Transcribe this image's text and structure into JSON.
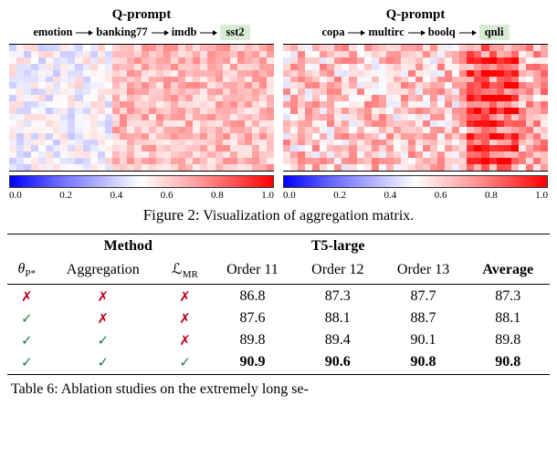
{
  "figure": {
    "panel_title": "Q-prompt",
    "left_labels": [
      "emotion",
      "banking77",
      "imdb",
      "sst2"
    ],
    "right_labels": [
      "copa",
      "multirc",
      "boolq",
      "qnli"
    ],
    "colorbar_ticks": [
      "0.0",
      "0.2",
      "0.4",
      "0.6",
      "0.8",
      "1.0"
    ],
    "colormap_stops": "#0000ff 0%, #6868ff 18%, #ffffff 50%, #ff8a8a 75%, #ff0000 100%",
    "heatmap": {
      "rows": 20,
      "left_cols": 36,
      "right_cols": 36,
      "left_base": 0.55,
      "left_noise": 0.1,
      "left_blocks": [
        {
          "c0": 0,
          "c1": 14,
          "shift": -0.06
        },
        {
          "c0": 14,
          "c1": 36,
          "shift": 0.08
        }
      ],
      "right_base": 0.6,
      "right_noise": 0.16,
      "right_blocks": [
        {
          "c0": 25,
          "c1": 32,
          "shift": 0.14
        },
        {
          "c0": 25,
          "c1": 32,
          "rows": [
            2,
            4,
            6,
            8,
            10,
            12,
            14,
            16,
            18
          ],
          "shift": 0.22
        },
        {
          "c0": 32,
          "c1": 36,
          "shift": 0.06
        }
      ]
    },
    "caption_num": "Figure 2:",
    "caption_text": " Visualization of aggregation matrix."
  },
  "table": {
    "group_left": "Method",
    "group_right": "T5-large",
    "col_theta": "θ",
    "col_theta_sub": "P*",
    "col_agg": "Aggregation",
    "col_lmr": "ℒ",
    "col_lmr_sub": "MR",
    "col_o11": "Order 11",
    "col_o12": "Order 12",
    "col_o13": "Order 13",
    "col_avg": "Average",
    "rows": [
      {
        "theta": "✗",
        "agg": "✗",
        "lmr": "✗",
        "o11": "86.8",
        "o12": "87.3",
        "o13": "87.7",
        "avg": "87.3",
        "bold": false
      },
      {
        "theta": "✓",
        "agg": "✗",
        "lmr": "✗",
        "o11": "87.6",
        "o12": "88.1",
        "o13": "88.7",
        "avg": "88.1",
        "bold": false
      },
      {
        "theta": "✓",
        "agg": "✓",
        "lmr": "✗",
        "o11": "89.8",
        "o12": "89.4",
        "o13": "90.1",
        "avg": "89.8",
        "bold": false
      },
      {
        "theta": "✓",
        "agg": "✓",
        "lmr": "✓",
        "o11": "90.9",
        "o12": "90.6",
        "o13": "90.8",
        "avg": "90.8",
        "bold": true
      }
    ],
    "caption_num": "Table 6:",
    "caption_text": " Ablation studies on the extremely long se-"
  }
}
